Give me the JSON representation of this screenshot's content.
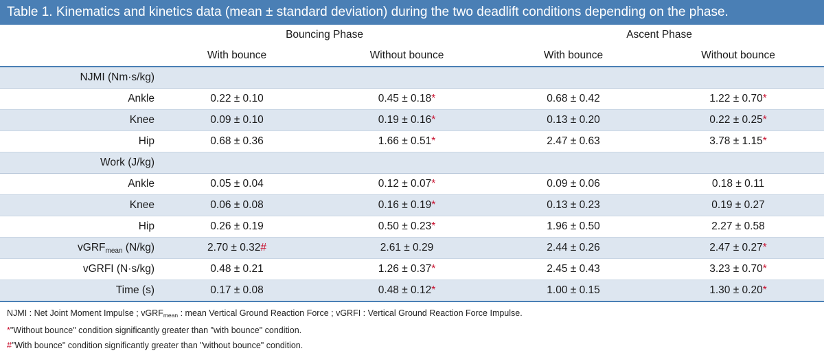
{
  "title": "Table 1. Kinematics and kinetics data (mean ± standard deviation) during the two deadlift conditions depending on the phase.",
  "phases": [
    "Bouncing Phase",
    "Ascent Phase"
  ],
  "conditions": [
    "With bounce",
    "Without bounce",
    "With bounce",
    "Without bounce"
  ],
  "sections": [
    {
      "label": "NJMI (Nm·s/kg)",
      "rows": [
        {
          "label": "Ankle",
          "cells": [
            {
              "value": "0.22 ± 0.10",
              "mark": ""
            },
            {
              "value": "0.45 ± 0.18",
              "mark": "*"
            },
            {
              "value": "0.68 ± 0.42",
              "mark": ""
            },
            {
              "value": "1.22 ± 0.70",
              "mark": "*"
            }
          ]
        },
        {
          "label": "Knee",
          "cells": [
            {
              "value": "0.09 ± 0.10",
              "mark": ""
            },
            {
              "value": "0.19 ± 0.16",
              "mark": "*"
            },
            {
              "value": "0.13 ± 0.20",
              "mark": ""
            },
            {
              "value": "0.22 ± 0.25",
              "mark": "*"
            }
          ]
        },
        {
          "label": "Hip",
          "cells": [
            {
              "value": "0.68 ± 0.36",
              "mark": ""
            },
            {
              "value": "1.66 ± 0.51",
              "mark": "*"
            },
            {
              "value": "2.47 ± 0.63",
              "mark": ""
            },
            {
              "value": "3.78 ± 1.15",
              "mark": "*"
            }
          ]
        }
      ]
    },
    {
      "label": "Work (J/kg)",
      "rows": [
        {
          "label": "Ankle",
          "cells": [
            {
              "value": "0.05 ± 0.04",
              "mark": ""
            },
            {
              "value": "0.12 ± 0.07",
              "mark": "*"
            },
            {
              "value": "0.09 ± 0.06",
              "mark": ""
            },
            {
              "value": "0.18 ± 0.11",
              "mark": ""
            }
          ]
        },
        {
          "label": "Knee",
          "cells": [
            {
              "value": "0.06 ± 0.08",
              "mark": ""
            },
            {
              "value": "0.16 ± 0.19",
              "mark": "*"
            },
            {
              "value": "0.13 ± 0.23",
              "mark": ""
            },
            {
              "value": "0.19 ± 0.27",
              "mark": ""
            }
          ]
        },
        {
          "label": "Hip",
          "cells": [
            {
              "value": "0.26 ± 0.19",
              "mark": ""
            },
            {
              "value": "0.50 ± 0.23",
              "mark": "*"
            },
            {
              "value": "1.96 ± 0.50",
              "mark": ""
            },
            {
              "value": "2.27 ± 0.58",
              "mark": ""
            }
          ]
        }
      ]
    }
  ],
  "extra_rows": [
    {
      "label_main": "vGRF",
      "label_sub": "mean",
      "label_tail": " (N/kg)",
      "cells": [
        {
          "value": "2.70 ± 0.32",
          "mark": "#"
        },
        {
          "value": "2.61 ± 0.29",
          "mark": ""
        },
        {
          "value": "2.44 ± 0.26",
          "mark": ""
        },
        {
          "value": "2.47 ± 0.27",
          "mark": "*"
        }
      ]
    },
    {
      "label_main": "vGRFI (N·s/kg)",
      "label_sub": "",
      "label_tail": "",
      "cells": [
        {
          "value": "0.48 ± 0.21",
          "mark": ""
        },
        {
          "value": "1.26 ± 0.37",
          "mark": "*"
        },
        {
          "value": "2.45 ± 0.43",
          "mark": ""
        },
        {
          "value": "3.23 ± 0.70",
          "mark": "*"
        }
      ]
    },
    {
      "label_main": "Time (s)",
      "label_sub": "",
      "label_tail": "",
      "cells": [
        {
          "value": "0.17 ± 0.08",
          "mark": ""
        },
        {
          "value": "0.48 ± 0.12",
          "mark": "*"
        },
        {
          "value": "1.00 ± 0.15",
          "mark": ""
        },
        {
          "value": "1.30 ± 0.20",
          "mark": "*"
        }
      ]
    }
  ],
  "notes": {
    "abbrev_a": "NJMI : Net Joint Moment Impulse ; vGRF",
    "abbrev_sub": "mean",
    "abbrev_b": " : mean Vertical Ground Reaction Force ; vGRFI : Vertical Ground Reaction Force Impulse.",
    "star_symbol": "*",
    "star_text": "\"Without bounce\" condition significantly greater than \"with bounce\" condition.",
    "hash_symbol": "#",
    "hash_text": "\"With bounce\" condition significantly greater than \"without bounce\" condition."
  },
  "colors": {
    "header_bg": "#4a7fb5",
    "shade_bg": "#dde6f0",
    "mark": "#c8102e"
  }
}
